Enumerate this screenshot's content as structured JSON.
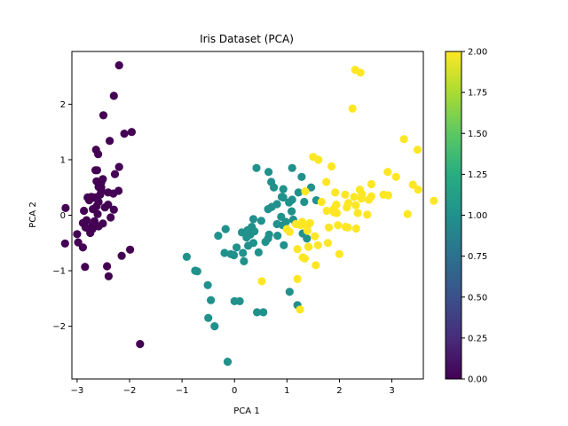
{
  "chart_data": {
    "type": "scatter",
    "title": "Iris Dataset (PCA)",
    "xlabel": "PCA 1",
    "ylabel": "PCA 2",
    "xlim": [
      -3.1,
      3.6
    ],
    "ylim": [
      -2.95,
      2.95
    ],
    "x_ticks": [
      -3,
      -2,
      -1,
      0,
      1,
      2,
      3
    ],
    "y_ticks": [
      -2,
      -1,
      0,
      1,
      2
    ],
    "grid": false,
    "colorbar": {
      "colormap": "viridis",
      "range": [
        0.0,
        2.0
      ],
      "ticks": [
        "0.00",
        "0.25",
        "0.50",
        "0.75",
        "1.00",
        "1.25",
        "1.50",
        "1.75",
        "2.00"
      ]
    },
    "colors": {
      "0": "#440154",
      "1": "#21918c",
      "2": "#fde725"
    },
    "series": [
      {
        "class_value": 0,
        "points": [
          [
            -2.68,
            0.32
          ],
          [
            -2.71,
            -0.18
          ],
          [
            -2.89,
            -0.14
          ],
          [
            -2.75,
            -0.32
          ],
          [
            -2.73,
            0.33
          ],
          [
            -2.28,
            0.74
          ],
          [
            -2.82,
            -0.09
          ],
          [
            -2.63,
            0.16
          ],
          [
            -2.89,
            -0.58
          ],
          [
            -2.67,
            -0.11
          ],
          [
            -2.51,
            0.65
          ],
          [
            -2.61,
            0.02
          ],
          [
            -2.79,
            -0.24
          ],
          [
            -3.23,
            -0.51
          ],
          [
            -2.64,
            1.18
          ],
          [
            -2.38,
            1.34
          ],
          [
            -2.62,
            0.81
          ],
          [
            -2.65,
            0.31
          ],
          [
            -2.2,
            0.87
          ],
          [
            -2.59,
            0.51
          ],
          [
            -2.31,
            0.39
          ],
          [
            -2.54,
            0.43
          ],
          [
            -3.22,
            0.13
          ],
          [
            -2.3,
            0.1
          ],
          [
            -2.36,
            -0.04
          ],
          [
            -2.51,
            -0.15
          ],
          [
            -2.47,
            0.14
          ],
          [
            -2.56,
            0.37
          ],
          [
            -2.64,
            0.32
          ],
          [
            -2.63,
            -0.19
          ],
          [
            -2.59,
            -0.2
          ],
          [
            -2.41,
            0.41
          ],
          [
            -2.65,
            0.81
          ],
          [
            -2.6,
            1.1
          ],
          [
            -2.67,
            -0.11
          ],
          [
            -2.87,
            0.08
          ],
          [
            -2.63,
            0.61
          ],
          [
            -2.8,
            0.32
          ],
          [
            -2.98,
            -0.49
          ],
          [
            -2.59,
            0.24
          ],
          [
            -2.77,
            0.27
          ],
          [
            -2.85,
            -0.93
          ],
          [
            -3.0,
            -0.34
          ],
          [
            -2.41,
            0.19
          ],
          [
            -2.21,
            0.44
          ],
          [
            -2.71,
            -0.25
          ],
          [
            -2.54,
            0.5
          ],
          [
            -2.84,
            -0.22
          ],
          [
            -2.54,
            0.59
          ],
          [
            -2.7,
            0.11
          ],
          [
            -2.2,
            2.7
          ],
          [
            -2.5,
            1.8
          ],
          [
            -2.3,
            2.15
          ],
          [
            -1.8,
            -2.32
          ],
          [
            -2.1,
            1.47
          ],
          [
            -1.96,
            1.5
          ],
          [
            -2.4,
            -1.1
          ],
          [
            -2.15,
            -0.73
          ],
          [
            -1.99,
            -0.62
          ],
          [
            -2.43,
            -0.92
          ]
        ]
      },
      {
        "class_value": 1,
        "points": [
          [
            1.28,
            0.69
          ],
          [
            0.93,
            0.32
          ],
          [
            1.46,
            0.5
          ],
          [
            0.18,
            -0.83
          ],
          [
            1.09,
            0.07
          ],
          [
            0.64,
            -0.42
          ],
          [
            1.1,
            0.28
          ],
          [
            -0.75,
            -1.0
          ],
          [
            1.04,
            0.23
          ],
          [
            -0.01,
            -0.72
          ],
          [
            -0.51,
            -1.26
          ],
          [
            0.51,
            -0.1
          ],
          [
            0.26,
            -0.55
          ],
          [
            0.98,
            -0.12
          ],
          [
            -0.17,
            -0.25
          ],
          [
            0.93,
            0.47
          ],
          [
            0.66,
            -0.35
          ],
          [
            0.23,
            -0.33
          ],
          [
            0.94,
            -0.54
          ],
          [
            0.04,
            -0.58
          ],
          [
            1.12,
            -0.08
          ],
          [
            0.36,
            -0.07
          ],
          [
            1.3,
            -0.33
          ],
          [
            0.92,
            -0.18
          ],
          [
            0.71,
            0.15
          ],
          [
            0.9,
            0.33
          ],
          [
            1.33,
            0.24
          ],
          [
            1.56,
            0.27
          ],
          [
            0.81,
            -0.16
          ],
          [
            -0.31,
            -0.37
          ],
          [
            -0.07,
            -0.7
          ],
          [
            -0.19,
            -0.68
          ],
          [
            0.14,
            -0.31
          ],
          [
            1.38,
            -0.42
          ],
          [
            0.59,
            -0.48
          ],
          [
            0.81,
            0.2
          ],
          [
            1.22,
            0.41
          ],
          [
            0.82,
            -0.37
          ],
          [
            0.25,
            -0.27
          ],
          [
            0.16,
            -0.68
          ],
          [
            0.46,
            -0.67
          ],
          [
            0.89,
            -0.03
          ],
          [
            0.23,
            -0.4
          ],
          [
            -0.71,
            -1.01
          ],
          [
            0.36,
            -0.5
          ],
          [
            0.33,
            -0.21
          ],
          [
            0.38,
            -0.29
          ],
          [
            0.64,
            0.11
          ],
          [
            -0.91,
            -0.75
          ],
          [
            0.3,
            -0.35
          ],
          [
            -0.45,
            -1.53
          ],
          [
            -0.5,
            -1.85
          ],
          [
            -0.38,
            -2.0
          ],
          [
            -0.13,
            -2.64
          ],
          [
            0.0,
            -1.55
          ],
          [
            0.1,
            -1.55
          ],
          [
            0.43,
            -1.75
          ],
          [
            0.55,
            -1.75
          ],
          [
            1.05,
            -1.38
          ],
          [
            1.2,
            -1.62
          ],
          [
            0.42,
            0.85
          ],
          [
            0.65,
            0.78
          ],
          [
            1.1,
            0.85
          ],
          [
            0.75,
            0.5
          ],
          [
            0.7,
            0.6
          ]
        ]
      },
      {
        "class_value": 2,
        "points": [
          [
            2.53,
            0.01
          ],
          [
            1.41,
            -0.57
          ],
          [
            2.61,
            0.34
          ],
          [
            1.97,
            -0.18
          ],
          [
            2.35,
            0.04
          ],
          [
            3.4,
            0.55
          ],
          [
            0.52,
            -1.19
          ],
          [
            2.93,
            0.36
          ],
          [
            2.32,
            -0.24
          ],
          [
            2.92,
            0.78
          ],
          [
            1.66,
            0.24
          ],
          [
            1.8,
            -0.22
          ],
          [
            2.17,
            0.22
          ],
          [
            1.34,
            -0.78
          ],
          [
            1.59,
            -0.54
          ],
          [
            1.9,
            0.12
          ],
          [
            1.95,
            0.04
          ],
          [
            3.49,
            1.18
          ],
          [
            3.8,
            0.26
          ],
          [
            1.3,
            -0.76
          ],
          [
            2.43,
            0.38
          ],
          [
            1.2,
            -0.61
          ],
          [
            3.5,
            0.46
          ],
          [
            1.39,
            -0.2
          ],
          [
            2.28,
            0.33
          ],
          [
            2.61,
            0.56
          ],
          [
            1.26,
            -0.18
          ],
          [
            1.29,
            -0.12
          ],
          [
            2.12,
            -0.21
          ],
          [
            2.39,
            0.46
          ],
          [
            2.84,
            0.37
          ],
          [
            3.23,
            1.37
          ],
          [
            2.16,
            -0.22
          ],
          [
            1.44,
            -0.14
          ],
          [
            1.78,
            -0.5
          ],
          [
            3.08,
            0.69
          ],
          [
            2.14,
            0.14
          ],
          [
            1.9,
            0.05
          ],
          [
            1.17,
            -0.16
          ],
          [
            2.11,
            0.37
          ],
          [
            2.31,
            0.18
          ],
          [
            1.92,
            0.41
          ],
          [
            1.41,
            -0.57
          ],
          [
            2.56,
            0.28
          ],
          [
            2.42,
            0.3
          ],
          [
            1.94,
            0.19
          ],
          [
            1.53,
            -0.38
          ],
          [
            1.76,
            0.08
          ],
          [
            1.9,
            0.12
          ],
          [
            1.39,
            -0.28
          ],
          [
            2.3,
            2.62
          ],
          [
            2.4,
            2.57
          ],
          [
            2.25,
            1.92
          ],
          [
            3.3,
            0.02
          ],
          [
            2.0,
            -0.7
          ],
          [
            1.55,
            -0.9
          ],
          [
            1.25,
            -1.7
          ],
          [
            1.2,
            -1.15
          ],
          [
            1.5,
            1.05
          ],
          [
            1.85,
            0.88
          ],
          [
            1.6,
            1.0
          ],
          [
            1.75,
            0.6
          ],
          [
            1.35,
            0.43
          ],
          [
            1.0,
            -0.25
          ],
          [
            1.05,
            -0.3
          ]
        ]
      }
    ]
  }
}
